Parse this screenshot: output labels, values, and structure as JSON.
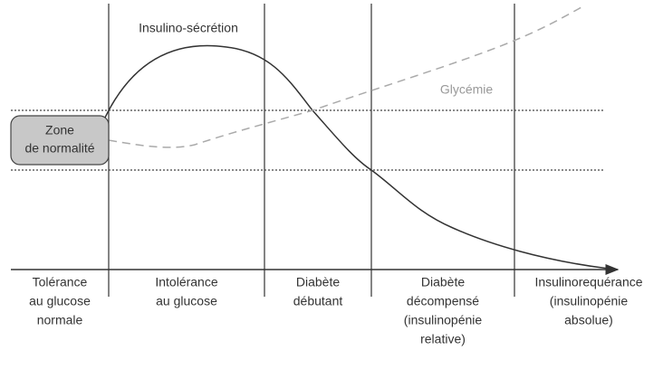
{
  "zone_label": {
    "lines": [
      "Zone",
      "de normalité"
    ]
  },
  "curves": [
    {
      "label": "Insulino-sécrétion"
    },
    {
      "label": "Glycémie"
    }
  ],
  "phases": [
    {
      "lines": [
        "Tolérance",
        "au glucose",
        "normale"
      ]
    },
    {
      "lines": [
        "Intolérance",
        "au glucose"
      ]
    },
    {
      "lines": [
        "Diabète",
        "débutant"
      ]
    },
    {
      "lines": [
        "Diabète",
        "décompensé",
        "(insulinopénie",
        "relative)"
      ]
    },
    {
      "lines": [
        "Insulinorequérance",
        "(insulinopénie",
        "absolue)"
      ]
    }
  ]
}
